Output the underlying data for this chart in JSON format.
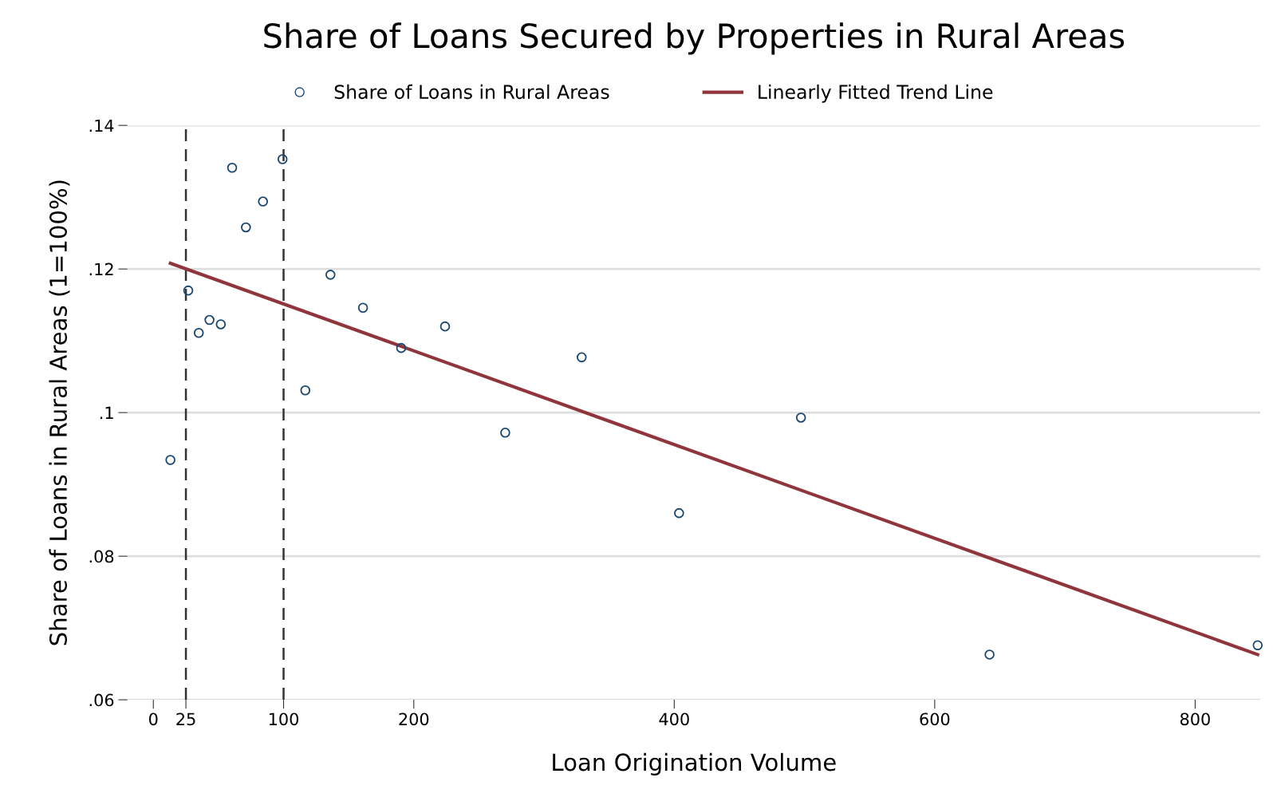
{
  "chart_data": {
    "type": "scatter",
    "title": "Share of Loans Secured by Properties in Rural Areas",
    "xlabel": "Loan Origination Volume",
    "ylabel": "Share of Loans in Rural Areas (1=100%)",
    "series": [
      {
        "name": "Share of Loans in Rural Areas",
        "color": "#1a476f",
        "marker": "circle",
        "x": [
          13.1,
          26.8,
          34.9,
          43.1,
          51.8,
          60.5,
          71.1,
          84.2,
          99.2,
          116.7,
          136.0,
          161.0,
          190.3,
          224.0,
          270.2,
          328.9,
          403.7,
          497.3,
          642.1,
          848.0
        ],
        "values": [
          0.0934,
          0.117,
          0.1111,
          0.1129,
          0.1123,
          0.1341,
          0.1258,
          0.1294,
          0.1353,
          0.1031,
          0.1192,
          0.1146,
          0.109,
          0.112,
          0.0972,
          0.1077,
          0.086,
          0.0993,
          0.0663,
          0.0676
        ]
      },
      {
        "name": "Linearly Fitted Trend Line",
        "type": "line",
        "color": "#90353b",
        "x": [
          13.1,
          848.0
        ],
        "values": [
          0.1208,
          0.0663
        ]
      }
    ],
    "ref_lines": [
      {
        "axis": "x",
        "value": 25,
        "color": "#333333",
        "line_style": "dashed"
      },
      {
        "axis": "x",
        "value": 100,
        "color": "#333333",
        "line_style": "dashed"
      }
    ],
    "xlim": [
      -20,
      850
    ],
    "ylim": [
      0.06,
      0.14
    ],
    "xticks": [
      0,
      25,
      100,
      200,
      400,
      600,
      800
    ],
    "yticks": [
      {
        "value": 0.06,
        "label": ".06"
      },
      {
        "value": 0.08,
        "label": ".08"
      },
      {
        "value": 0.1,
        "label": ".1"
      },
      {
        "value": 0.12,
        "label": ".12"
      },
      {
        "value": 0.14,
        "label": ".14"
      }
    ],
    "grid": "y",
    "legend": "top"
  }
}
